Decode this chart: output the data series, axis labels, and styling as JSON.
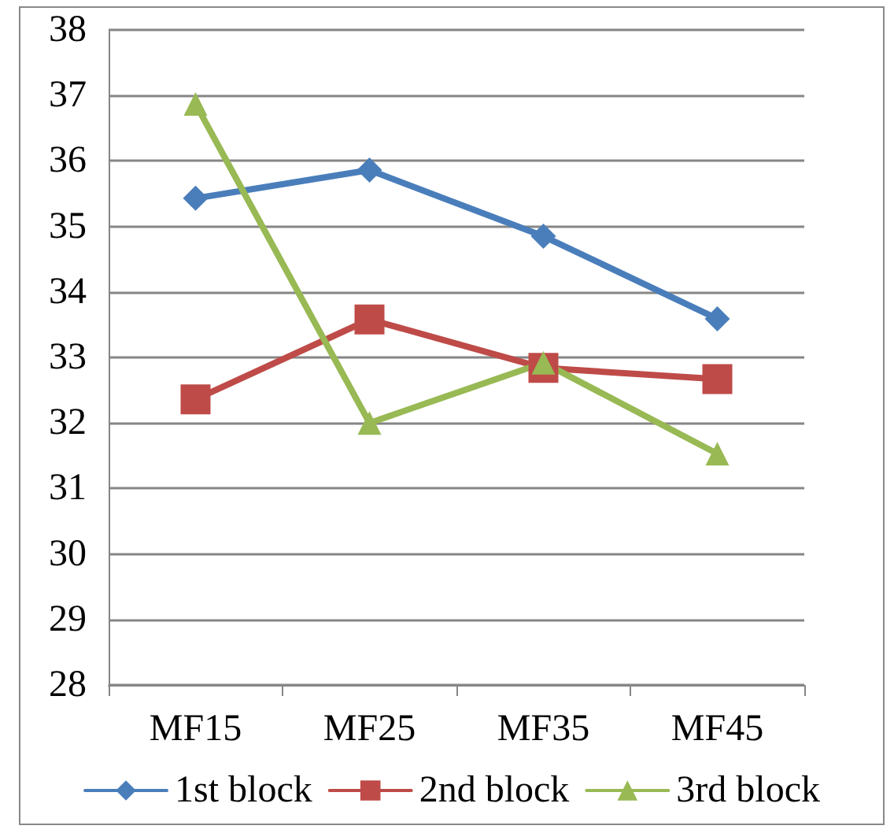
{
  "chart_data": {
    "type": "line",
    "categories": [
      "MF15",
      "MF25",
      "MF35",
      "MF45"
    ],
    "series": [
      {
        "name": "1st block",
        "color": "#4a7ebb",
        "marker": "diamond",
        "values": [
          35.43,
          35.86,
          34.85,
          33.59
        ]
      },
      {
        "name": "2nd block",
        "color": "#be4b48",
        "marker": "square",
        "values": [
          32.36,
          33.58,
          32.84,
          32.67
        ]
      },
      {
        "name": "3rd block",
        "color": "#98b954",
        "marker": "triangle",
        "values": [
          36.87,
          32.0,
          32.92,
          31.53
        ]
      }
    ],
    "ylim": [
      28,
      38
    ],
    "yticks": [
      28,
      29,
      30,
      31,
      32,
      33,
      34,
      35,
      36,
      37,
      38
    ],
    "grid": "y",
    "legend": "bottom"
  }
}
